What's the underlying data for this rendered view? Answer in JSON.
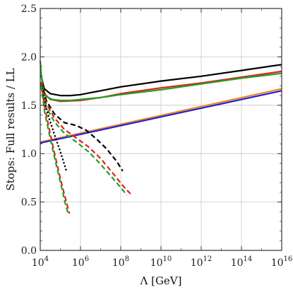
{
  "chart_data": {
    "type": "line",
    "title": "",
    "xlabel": "Λ [GeV]",
    "ylabel": "Stops: Full results / LL",
    "x_scale": "log10",
    "xlim": [
      4,
      16
    ],
    "ylim": [
      0,
      2.5
    ],
    "x_ticks": [
      {
        "value": 4,
        "base": "10",
        "exp": "4"
      },
      {
        "value": 6,
        "base": "10",
        "exp": "6"
      },
      {
        "value": 8,
        "base": "10",
        "exp": "8"
      },
      {
        "value": 10,
        "base": "10",
        "exp": "10"
      },
      {
        "value": 12,
        "base": "10",
        "exp": "12"
      },
      {
        "value": 14,
        "base": "10",
        "exp": "14"
      },
      {
        "value": 16,
        "base": "10",
        "exp": "16"
      }
    ],
    "y_ticks": [
      {
        "value": 0,
        "label": "0.0"
      },
      {
        "value": 0.5,
        "label": "0.5"
      },
      {
        "value": 1,
        "label": "1.0"
      },
      {
        "value": 1.5,
        "label": "1.5"
      },
      {
        "value": 2,
        "label": "2.0"
      },
      {
        "value": 2.5,
        "label": "2.5"
      }
    ],
    "grid": true,
    "x_values_note": "x is log10(Λ/GeV)",
    "series": [
      {
        "style": "solid",
        "color": "#000000",
        "x": [
          4.05,
          4.2,
          4.5,
          5,
          5.5,
          6,
          6.5,
          7,
          8,
          10,
          12,
          14,
          16
        ],
        "y": [
          1.8,
          1.67,
          1.62,
          1.6,
          1.6,
          1.61,
          1.63,
          1.65,
          1.69,
          1.75,
          1.8,
          1.86,
          1.92
        ]
      },
      {
        "style": "solid",
        "color": "#e02020",
        "x": [
          4.05,
          4.2,
          4.5,
          5,
          5.5,
          6,
          7,
          8,
          10,
          12,
          14,
          16
        ],
        "y": [
          1.72,
          1.62,
          1.56,
          1.54,
          1.545,
          1.55,
          1.58,
          1.62,
          1.68,
          1.73,
          1.79,
          1.85
        ]
      },
      {
        "style": "solid",
        "color": "#22a022",
        "x": [
          4.0,
          4.05,
          4.15,
          4.3,
          4.6,
          5,
          5.5,
          6,
          7,
          8,
          10,
          12,
          14,
          16
        ],
        "y": [
          1.96,
          1.82,
          1.66,
          1.59,
          1.56,
          1.55,
          1.55,
          1.56,
          1.58,
          1.61,
          1.66,
          1.72,
          1.78,
          1.83
        ]
      },
      {
        "style": "solid",
        "color": "#f08a1c",
        "x": [
          4.0,
          16.0
        ],
        "y": [
          1.12,
          1.67
        ]
      },
      {
        "style": "solid",
        "color": "#2020e0",
        "x": [
          4.0,
          16.0
        ],
        "y": [
          1.11,
          1.65
        ]
      },
      {
        "style": "dashed",
        "color": "#000000",
        "x": [
          4.05,
          4.3,
          4.7,
          5.2,
          5.8,
          6.3,
          6.8,
          7.3,
          7.8,
          8.1
        ],
        "y": [
          1.74,
          1.55,
          1.41,
          1.32,
          1.29,
          1.24,
          1.15,
          1.05,
          0.92,
          0.82
        ]
      },
      {
        "style": "dashed",
        "color": "#e02020",
        "x": [
          4.05,
          4.3,
          4.7,
          5.2,
          5.8,
          6.4,
          7.0,
          7.6,
          8.1,
          8.5
        ],
        "y": [
          1.72,
          1.52,
          1.37,
          1.25,
          1.16,
          1.07,
          0.95,
          0.8,
          0.67,
          0.58
        ]
      },
      {
        "style": "dashed",
        "color": "#22a022",
        "x": [
          4.05,
          4.3,
          4.7,
          5.2,
          5.8,
          6.4,
          7.0,
          7.5,
          8.0,
          8.3
        ],
        "y": [
          1.68,
          1.48,
          1.33,
          1.21,
          1.12,
          1.02,
          0.89,
          0.77,
          0.65,
          0.57
        ]
      },
      {
        "style": "dotted",
        "color": "#000000",
        "x": [
          4.05,
          4.2,
          4.45,
          4.7,
          4.95,
          5.15,
          5.3
        ],
        "y": [
          1.72,
          1.55,
          1.36,
          1.2,
          1.05,
          0.92,
          0.82
        ]
      },
      {
        "style": "dashed",
        "color": "#e02020",
        "x": [
          4.05,
          4.2,
          4.5,
          4.8,
          5.1,
          5.3,
          5.45
        ],
        "y": [
          1.74,
          1.5,
          1.2,
          0.92,
          0.66,
          0.5,
          0.38
        ]
      },
      {
        "style": "dashed",
        "color": "#22a022",
        "x": [
          4.05,
          4.2,
          4.5,
          4.8,
          5.1,
          5.25,
          5.4
        ],
        "y": [
          1.7,
          1.45,
          1.15,
          0.88,
          0.62,
          0.48,
          0.37
        ]
      }
    ]
  }
}
